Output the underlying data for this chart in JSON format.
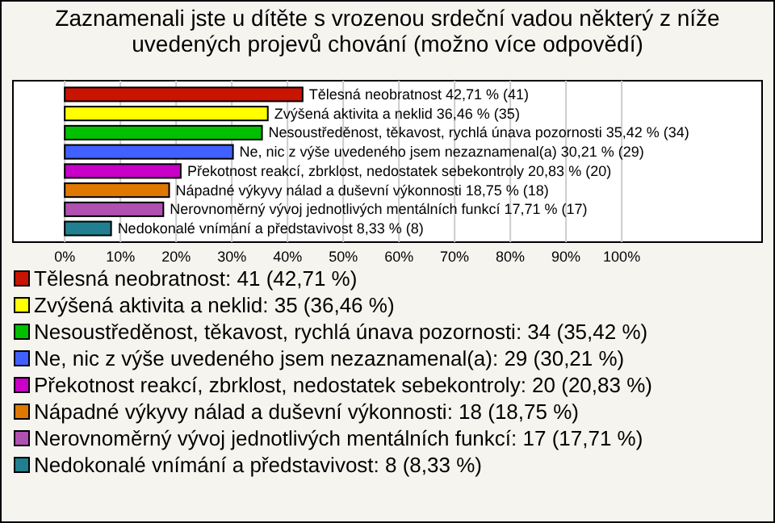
{
  "chart_data": {
    "type": "bar",
    "orientation": "horizontal",
    "title": "Zaznamenali jste u dítěte s vrozenou srdeční vadou některý z níže uvedených projevů chování (možno více odpovědí)",
    "categories": [
      "Tělesná neobratnost",
      "Zvýšená aktivita a neklid",
      "Nesoustředěnost, těkavost, rychlá únava pozornosti",
      "Ne, nic z výše uvedeného jsem nezaznamenal(a)",
      "Překotnost reakcí, zbrklost, nedostatek sebekontroly",
      "Nápadné výkyvy nálad a duševní výkonnosti",
      "Nerovnoměrný vývoj jednotlivých mentálních funkcí",
      "Nedokonalé vnímání a představivost"
    ],
    "values": [
      42.71,
      36.46,
      35.42,
      30.21,
      20.83,
      18.75,
      17.71,
      8.33
    ],
    "value_labels": [
      "42,71 % (41)",
      "36,46 % (35)",
      "35,42 % (34)",
      "30,21 % (29)",
      "20,83 % (20)",
      "18,75 % (18)",
      "17,71 % (17)",
      "8,33 % (8)"
    ],
    "colors": [
      "#c81400",
      "#ffff00",
      "#00c000",
      "#4060ff",
      "#c800c8",
      "#e07800",
      "#b050b0",
      "#208090"
    ],
    "xlim": [
      -9.3,
      125.2
    ],
    "xticks": [
      {
        "value": 0,
        "label": "0%"
      },
      {
        "value": 10,
        "label": "10%"
      },
      {
        "value": 20,
        "label": "20%"
      },
      {
        "value": 30,
        "label": "30%"
      },
      {
        "value": 40,
        "label": "40%"
      },
      {
        "value": 50,
        "label": "50%"
      },
      {
        "value": 60,
        "label": "60%"
      },
      {
        "value": 70,
        "label": "70%"
      },
      {
        "value": 80,
        "label": "80%"
      },
      {
        "value": 90,
        "label": "90%"
      },
      {
        "value": 100,
        "label": "100%"
      }
    ],
    "grid": "x",
    "annotations": [
      "Tělesná neobratnost: 41 (42,71 %)",
      "Zvýšená aktivita a neklid: 35 (36,46 %)",
      "Nesoustředěnost, těkavost, rychlá únava pozornosti: 34 (35,42 %)",
      "Ne, nic z výše uvedeného jsem nezaznamenal(a): 29 (30,21 %)",
      "Překotnost reakcí, zbrklost, nedostatek sebekontroly: 20 (20,83 %)",
      "Nápadné výkyvy nálad a duševní výkonnosti: 18 (18,75 %)",
      "Nerovnoměrný vývoj jednotlivých mentálních funkcí: 17 (17,71 %)",
      "Nedokonalé vnímání a představivost: 8 (8,33 %)"
    ]
  }
}
